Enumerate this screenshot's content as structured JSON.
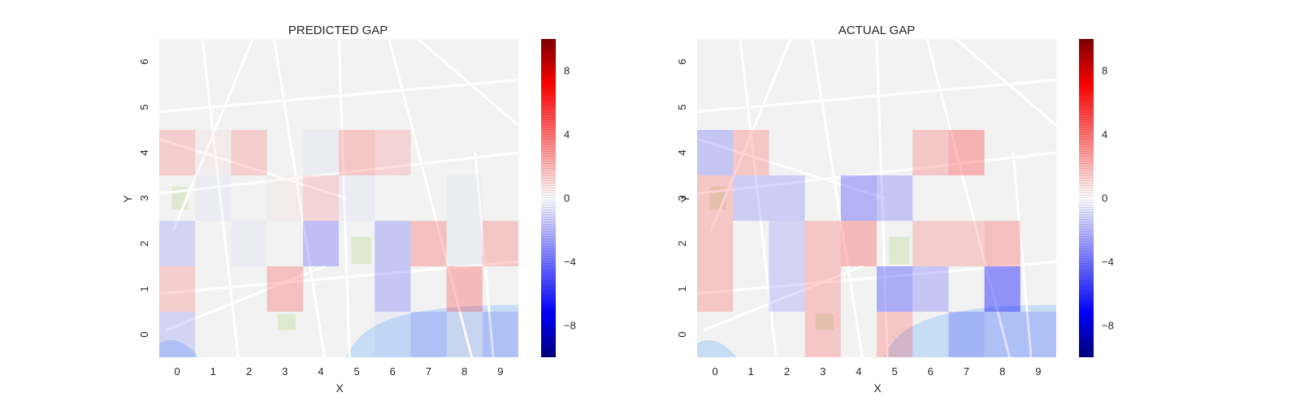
{
  "colors": {
    "positive": "#ff0000",
    "negative": "#0000ff",
    "zero": "#ffffff",
    "colorbar_high": "#7f0000",
    "colorbar_low": "#00007f",
    "map_background": "#f2f2f2",
    "map_road": "#ffffff",
    "map_water": "#c7dcf5",
    "map_park": "#dfe9cf"
  },
  "chart_data": [
    {
      "type": "heatmap",
      "title": "PREDICTED GAP",
      "xlabel": "X",
      "ylabel": "Y",
      "x_ticks": [
        "0",
        "1",
        "2",
        "3",
        "4",
        "5",
        "6",
        "7",
        "8",
        "9"
      ],
      "y_ticks": [
        "0",
        "1",
        "2",
        "3",
        "4",
        "5",
        "6"
      ],
      "xlim": [
        -0.5,
        9.5
      ],
      "ylim": [
        -0.5,
        6.5
      ],
      "background": "street map",
      "grid": false,
      "colorbar": {
        "range": [
          -10,
          10
        ],
        "ticks": [
          "8",
          "4",
          "0",
          "−4",
          "−8"
        ],
        "tick_values": [
          8,
          4,
          0,
          -4,
          -8
        ],
        "placement": "right"
      },
      "cells": [
        {
          "x": 0,
          "y": 0,
          "value": -1
        },
        {
          "x": 1,
          "y": 0,
          "value": 0
        },
        {
          "x": 2,
          "y": 0,
          "value": 0
        },
        {
          "x": 3,
          "y": 0,
          "value": 0
        },
        {
          "x": 4,
          "y": 0,
          "value": 0
        },
        {
          "x": 5,
          "y": 0,
          "value": 0
        },
        {
          "x": 6,
          "y": 0,
          "value": -0.5
        },
        {
          "x": 7,
          "y": 0,
          "value": -1
        },
        {
          "x": 8,
          "y": 0,
          "value": 0.5
        },
        {
          "x": 9,
          "y": 0,
          "value": -1
        },
        {
          "x": 0,
          "y": 1,
          "value": 1.5
        },
        {
          "x": 1,
          "y": 1,
          "value": 0
        },
        {
          "x": 2,
          "y": 1,
          "value": 0
        },
        {
          "x": 3,
          "y": 1,
          "value": 2.5
        },
        {
          "x": 4,
          "y": 1,
          "value": 0
        },
        {
          "x": 5,
          "y": 1,
          "value": 0
        },
        {
          "x": 6,
          "y": 1,
          "value": -2
        },
        {
          "x": 7,
          "y": 1,
          "value": 0
        },
        {
          "x": 8,
          "y": 1,
          "value": 3
        },
        {
          "x": 9,
          "y": 1,
          "value": 0
        },
        {
          "x": 0,
          "y": 2,
          "value": -1
        },
        {
          "x": 1,
          "y": 2,
          "value": 0
        },
        {
          "x": 2,
          "y": 2,
          "value": -0.5
        },
        {
          "x": 3,
          "y": 2,
          "value": 0
        },
        {
          "x": 4,
          "y": 2,
          "value": -2.5
        },
        {
          "x": 5,
          "y": 2,
          "value": 0
        },
        {
          "x": 6,
          "y": 2,
          "value": -2
        },
        {
          "x": 7,
          "y": 2,
          "value": 2.5
        },
        {
          "x": 8,
          "y": 2,
          "value": -0.5
        },
        {
          "x": 9,
          "y": 2,
          "value": 2
        },
        {
          "x": 0,
          "y": 3,
          "value": 0
        },
        {
          "x": 1,
          "y": 3,
          "value": -0.5
        },
        {
          "x": 2,
          "y": 3,
          "value": 0
        },
        {
          "x": 3,
          "y": 3,
          "value": 0.5
        },
        {
          "x": 4,
          "y": 3,
          "value": 1
        },
        {
          "x": 5,
          "y": 3,
          "value": -0.5
        },
        {
          "x": 6,
          "y": 3,
          "value": 0
        },
        {
          "x": 7,
          "y": 3,
          "value": 0
        },
        {
          "x": 8,
          "y": 3,
          "value": -0.5
        },
        {
          "x": 9,
          "y": 3,
          "value": 0
        },
        {
          "x": 0,
          "y": 4,
          "value": 1.5
        },
        {
          "x": 1,
          "y": 4,
          "value": 0.5
        },
        {
          "x": 2,
          "y": 4,
          "value": 1.5
        },
        {
          "x": 3,
          "y": 4,
          "value": 0
        },
        {
          "x": 4,
          "y": 4,
          "value": -0.5
        },
        {
          "x": 5,
          "y": 4,
          "value": 2
        },
        {
          "x": 6,
          "y": 4,
          "value": 1
        },
        {
          "x": 7,
          "y": 4,
          "value": 0
        },
        {
          "x": 8,
          "y": 4,
          "value": 0
        },
        {
          "x": 9,
          "y": 4,
          "value": 0
        }
      ]
    },
    {
      "type": "heatmap",
      "title": "ACTUAL GAP",
      "xlabel": "X",
      "ylabel": "Y",
      "x_ticks": [
        "0",
        "1",
        "2",
        "3",
        "4",
        "5",
        "6",
        "7",
        "8",
        "9"
      ],
      "y_ticks": [
        "0",
        "1",
        "2",
        "3",
        "4",
        "5",
        "6"
      ],
      "xlim": [
        -0.5,
        9.5
      ],
      "ylim": [
        -0.5,
        6.5
      ],
      "background": "street map",
      "grid": false,
      "colorbar": {
        "range": [
          -10,
          10
        ],
        "ticks": [
          "8",
          "4",
          "0",
          "−4",
          "−8"
        ],
        "tick_values": [
          8,
          4,
          0,
          -4,
          -8
        ],
        "placement": "right"
      },
      "cells": [
        {
          "x": 0,
          "y": 0,
          "value": 0
        },
        {
          "x": 1,
          "y": 0,
          "value": 0
        },
        {
          "x": 2,
          "y": 0,
          "value": 0
        },
        {
          "x": 3,
          "y": 0,
          "value": 2
        },
        {
          "x": 4,
          "y": 0,
          "value": 0
        },
        {
          "x": 5,
          "y": 0,
          "value": 2
        },
        {
          "x": 6,
          "y": 0,
          "value": 0
        },
        {
          "x": 7,
          "y": 0,
          "value": -2
        },
        {
          "x": 8,
          "y": 0,
          "value": -1
        },
        {
          "x": 9,
          "y": 0,
          "value": -1
        },
        {
          "x": 0,
          "y": 1,
          "value": 2
        },
        {
          "x": 1,
          "y": 1,
          "value": 0
        },
        {
          "x": 2,
          "y": 1,
          "value": -1
        },
        {
          "x": 3,
          "y": 1,
          "value": 2
        },
        {
          "x": 4,
          "y": 1,
          "value": 0
        },
        {
          "x": 5,
          "y": 1,
          "value": -4
        },
        {
          "x": 6,
          "y": 1,
          "value": -2
        },
        {
          "x": 7,
          "y": 1,
          "value": 0
        },
        {
          "x": 8,
          "y": 1,
          "value": -6
        },
        {
          "x": 9,
          "y": 1,
          "value": 0
        },
        {
          "x": 0,
          "y": 2,
          "value": 2
        },
        {
          "x": 1,
          "y": 2,
          "value": 0
        },
        {
          "x": 2,
          "y": 2,
          "value": -1
        },
        {
          "x": 3,
          "y": 2,
          "value": 2
        },
        {
          "x": 4,
          "y": 2,
          "value": 3
        },
        {
          "x": 5,
          "y": 2,
          "value": 0
        },
        {
          "x": 6,
          "y": 2,
          "value": 1.5
        },
        {
          "x": 7,
          "y": 2,
          "value": 1.5
        },
        {
          "x": 8,
          "y": 2,
          "value": 2.5
        },
        {
          "x": 9,
          "y": 2,
          "value": 0
        },
        {
          "x": 0,
          "y": 3,
          "value": 2
        },
        {
          "x": 1,
          "y": 3,
          "value": -1.5
        },
        {
          "x": 2,
          "y": 3,
          "value": -1.5
        },
        {
          "x": 3,
          "y": 3,
          "value": 0
        },
        {
          "x": 4,
          "y": 3,
          "value": -3.5
        },
        {
          "x": 5,
          "y": 3,
          "value": -2
        },
        {
          "x": 6,
          "y": 3,
          "value": 0
        },
        {
          "x": 7,
          "y": 3,
          "value": 0
        },
        {
          "x": 8,
          "y": 3,
          "value": 0
        },
        {
          "x": 9,
          "y": 3,
          "value": 0
        },
        {
          "x": 0,
          "y": 4,
          "value": -2
        },
        {
          "x": 1,
          "y": 4,
          "value": 2
        },
        {
          "x": 2,
          "y": 4,
          "value": 0
        },
        {
          "x": 3,
          "y": 4,
          "value": 0
        },
        {
          "x": 4,
          "y": 4,
          "value": 0
        },
        {
          "x": 5,
          "y": 4,
          "value": 0
        },
        {
          "x": 6,
          "y": 4,
          "value": 2
        },
        {
          "x": 7,
          "y": 4,
          "value": 3.5
        },
        {
          "x": 8,
          "y": 4,
          "value": 0
        },
        {
          "x": 9,
          "y": 4,
          "value": 0
        }
      ]
    }
  ]
}
